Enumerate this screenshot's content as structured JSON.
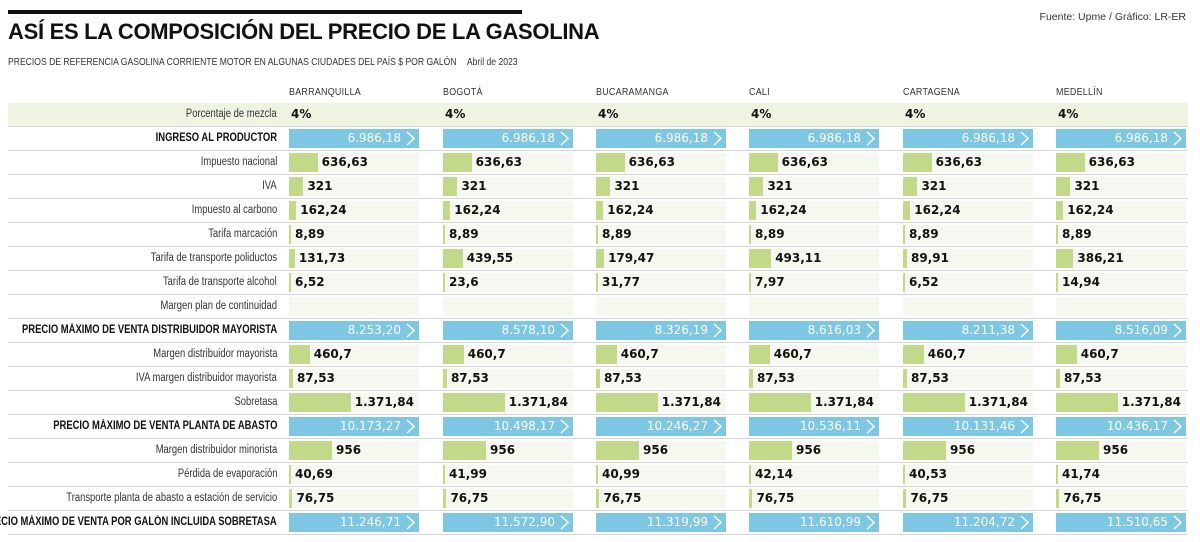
{
  "header": {
    "title": "ASÍ ES LA COMPOSICIÓN DEL PRECIO DE LA GASOLINA",
    "subtitle": "PRECIOS DE REFERENCIA GASOLINA CORRIENTE MOTOR EN ALGUNAS CIUDADES DEL PAÍS $ POR GALÓN",
    "date": "Abril de 2023",
    "source": "Fuente: Upme / Gráfico: LR-ER"
  },
  "colors": {
    "component_bar": "#c3d98a",
    "total_bar": "#7ec7e2",
    "mix_row_bg": "#eef3e2"
  },
  "chart_data": {
    "type": "table",
    "columns": [
      "BARRANQUILLA",
      "BOGOTÁ",
      "BUCARAMANGA",
      "CALI",
      "CARTAGENA",
      "MEDELLÍN"
    ],
    "rows": [
      {
        "label": "Porcentaje de mezcla",
        "kind": "text",
        "values": [
          "4%",
          "4%",
          "4%",
          "4%",
          "4%",
          "4%"
        ]
      },
      {
        "label": "INGRESO AL PRODUCTOR",
        "kind": "total",
        "values": [
          "6.986,18",
          "6.986,18",
          "6.986,18",
          "6.986,18",
          "6.986,18",
          "6.986,18"
        ]
      },
      {
        "label": "Impuesto nacional",
        "kind": "bar",
        "values": [
          "636,63",
          "636,63",
          "636,63",
          "636,63",
          "636,63",
          "636,63"
        ]
      },
      {
        "label": "IVA",
        "kind": "bar",
        "values": [
          "321",
          "321",
          "321",
          "321",
          "321",
          "321"
        ]
      },
      {
        "label": "Impuesto al carbono",
        "kind": "bar",
        "values": [
          "162,24",
          "162,24",
          "162,24",
          "162,24",
          "162,24",
          "162,24"
        ]
      },
      {
        "label": "Tarifa marcación",
        "kind": "bar",
        "values": [
          "8,89",
          "8,89",
          "8,89",
          "8,89",
          "8,89",
          "8,89"
        ]
      },
      {
        "label": "Tarifa de transporte poliductos",
        "kind": "bar",
        "values": [
          "131,73",
          "439,55",
          "179,47",
          "493,11",
          "89,91",
          "386,21"
        ]
      },
      {
        "label": "Tarifa de transporte alcohol",
        "kind": "bar",
        "values": [
          "6,52",
          "23,6",
          "31,77",
          "7,97",
          "6,52",
          "14,94"
        ]
      },
      {
        "label": "Margen plan de continuidad",
        "kind": "empty",
        "values": [
          "",
          "",
          "",
          "",
          "",
          ""
        ]
      },
      {
        "label": "PRECIO MÁXIMO DE VENTA DISTRIBUIDOR MAYORISTA",
        "kind": "total",
        "values": [
          "8.253,20",
          "8.578,10",
          "8.326,19",
          "8.616,03",
          "8.211,38",
          "8.516,09"
        ]
      },
      {
        "label": "Margen distribuidor mayorista",
        "kind": "bar",
        "values": [
          "460,7",
          "460,7",
          "460,7",
          "460,7",
          "460,7",
          "460,7"
        ]
      },
      {
        "label": "IVA margen distribuidor mayorista",
        "kind": "bar",
        "values": [
          "87,53",
          "87,53",
          "87,53",
          "87,53",
          "87,53",
          "87,53"
        ]
      },
      {
        "label": "Sobretasa",
        "kind": "bar",
        "values": [
          "1.371,84",
          "1.371,84",
          "1.371,84",
          "1.371,84",
          "1.371,84",
          "1.371,84"
        ]
      },
      {
        "label": "PRECIO MÁXIMO DE VENTA PLANTA DE ABASTO",
        "kind": "total",
        "values": [
          "10.173,27",
          "10.498,17",
          "10.246,27",
          "10.536,11",
          "10.131,46",
          "10.436,17"
        ]
      },
      {
        "label": "Margen distribuidor minorista",
        "kind": "bar",
        "values": [
          "956",
          "956",
          "956",
          "956",
          "956",
          "956"
        ]
      },
      {
        "label": "Pérdida de evaporación",
        "kind": "bar",
        "values": [
          "40,69",
          "41,99",
          "40,99",
          "42,14",
          "40,53",
          "41,74"
        ]
      },
      {
        "label": "Transporte planta de abasto a estación de servicio",
        "kind": "bar",
        "values": [
          "76,75",
          "76,75",
          "76,75",
          "76,75",
          "76,75",
          "76,75"
        ]
      },
      {
        "label": "PRECIO MÁXIMO DE VENTA POR GALÓN INCLUIDA SOBRETASA",
        "kind": "total",
        "values": [
          "11.246,71",
          "11.572,90",
          "11.319,99",
          "11.610,99",
          "11.204,72",
          "11.510,65"
        ]
      }
    ]
  }
}
